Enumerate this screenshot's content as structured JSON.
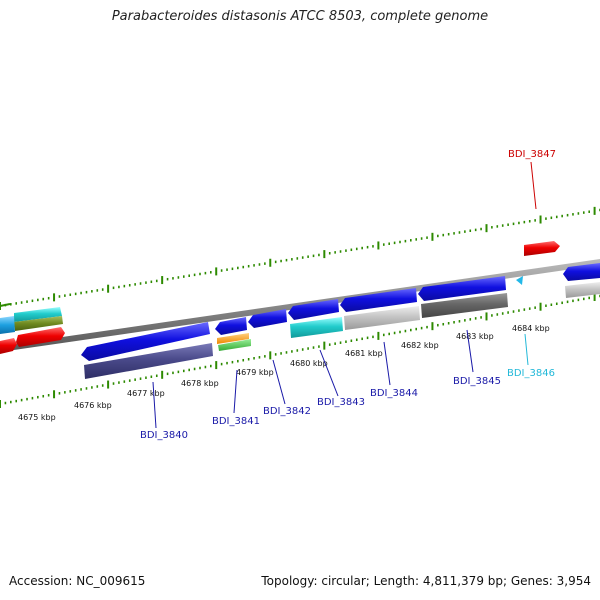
{
  "title": "Parabacteroides distasonis ATCC 8503, complete genome",
  "accession": "Accession: NC_009615",
  "summary": "Topology: circular; Length: 4,811,379 bp; Genes: 3,954",
  "colors": {
    "backbone": "#808080",
    "tick": "#2d8a00",
    "label_default": "#1a1aa8",
    "label_red": "#cc0000",
    "label_cyan": "#22b8d8"
  },
  "kbp_labels": [
    "4675 kbp",
    "4676 kbp",
    "4677 kbp",
    "4678 kbp",
    "4679 kbp",
    "4680 kbp",
    "4681 kbp",
    "4682 kbp",
    "4683 kbp",
    "4684 kbp"
  ],
  "genes": [
    {
      "name": "BDI_3840",
      "color": "#1a1aa8"
    },
    {
      "name": "BDI_3841",
      "color": "#1a1aa8"
    },
    {
      "name": "BDI_3842",
      "color": "#1a1aa8"
    },
    {
      "name": "BDI_3843",
      "color": "#1a1aa8"
    },
    {
      "name": "BDI_3844",
      "color": "#1a1aa8"
    },
    {
      "name": "BDI_3845",
      "color": "#1a1aa8"
    },
    {
      "name": "BDI_3846",
      "color": "#22b8d8"
    },
    {
      "name": "BDI_3847",
      "color": "#cc0000"
    }
  ]
}
